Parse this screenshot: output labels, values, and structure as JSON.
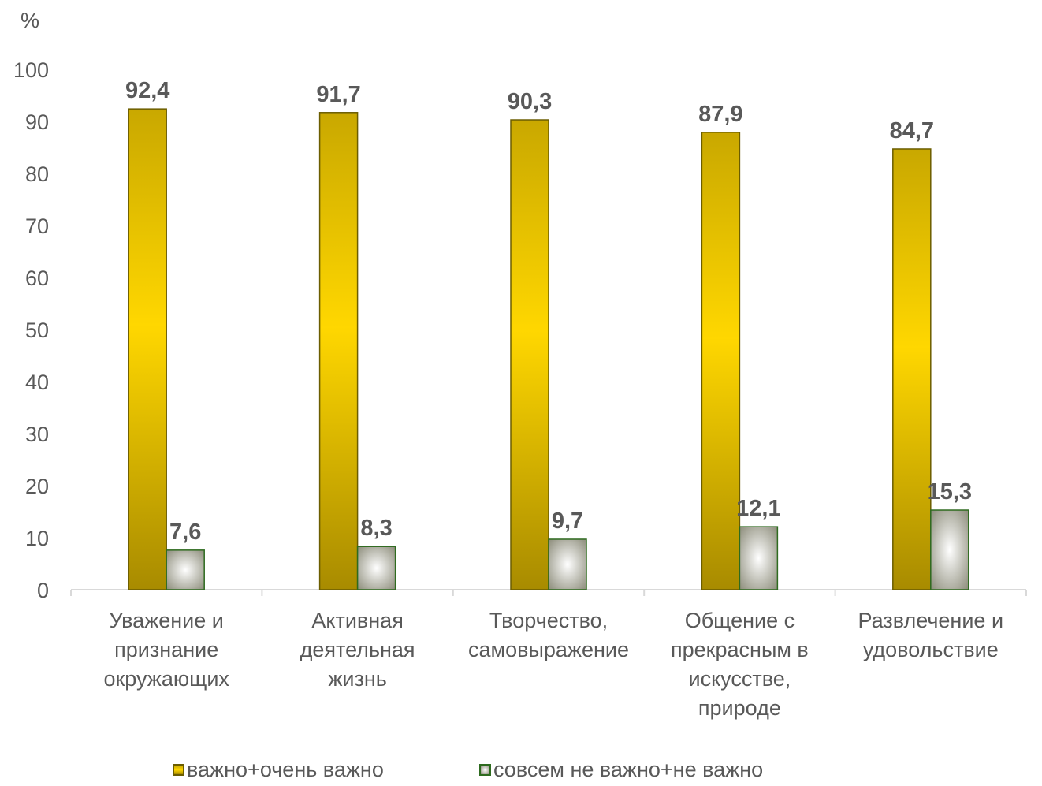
{
  "chart_data": {
    "type": "bar",
    "ylabel": "%",
    "ylim": [
      0,
      100
    ],
    "yticks": [
      0,
      10,
      20,
      30,
      40,
      50,
      60,
      70,
      80,
      90,
      100
    ],
    "categories": [
      "Уважение и признание окружающих",
      "Активная деятельная жизнь",
      "Творчество, самовыражение",
      "Общение с прекрасным в искусстве, природе",
      "Развлечение и удовольствие"
    ],
    "category_lines": [
      [
        "Уважение и",
        "признание",
        "окружающих"
      ],
      [
        "Активная",
        "деятельная",
        "жизнь"
      ],
      [
        "Творчество,",
        "самовыражение"
      ],
      [
        "Общение с",
        "прекрасным в",
        "искусстве,",
        "природе"
      ],
      [
        "Развлечение и",
        "удовольствие"
      ]
    ],
    "series": [
      {
        "name": "важно+очень важно",
        "values": [
          92.4,
          91.7,
          90.3,
          87.9,
          84.7
        ],
        "labels": [
          "92,4",
          "91,7",
          "90,3",
          "87,9",
          "84,7"
        ]
      },
      {
        "name": "совсем не важно+не важно",
        "values": [
          7.6,
          8.3,
          9.7,
          12.1,
          15.3
        ],
        "labels": [
          "7,6",
          "8,3",
          "9,7",
          "12,1",
          "15,3"
        ]
      }
    ],
    "legend_position": "bottom",
    "grid": false
  },
  "colors": {
    "series1_top": "#c9a800",
    "series1_mid": "#ffd700",
    "series1_bottom": "#a88b00",
    "series1_border": "#6b5d00",
    "series2_light": "#ffffff",
    "series2_dark": "#8c8c7a",
    "series2_border": "#2e6b1f",
    "text": "#595959",
    "axis": "#d9d9d9"
  }
}
